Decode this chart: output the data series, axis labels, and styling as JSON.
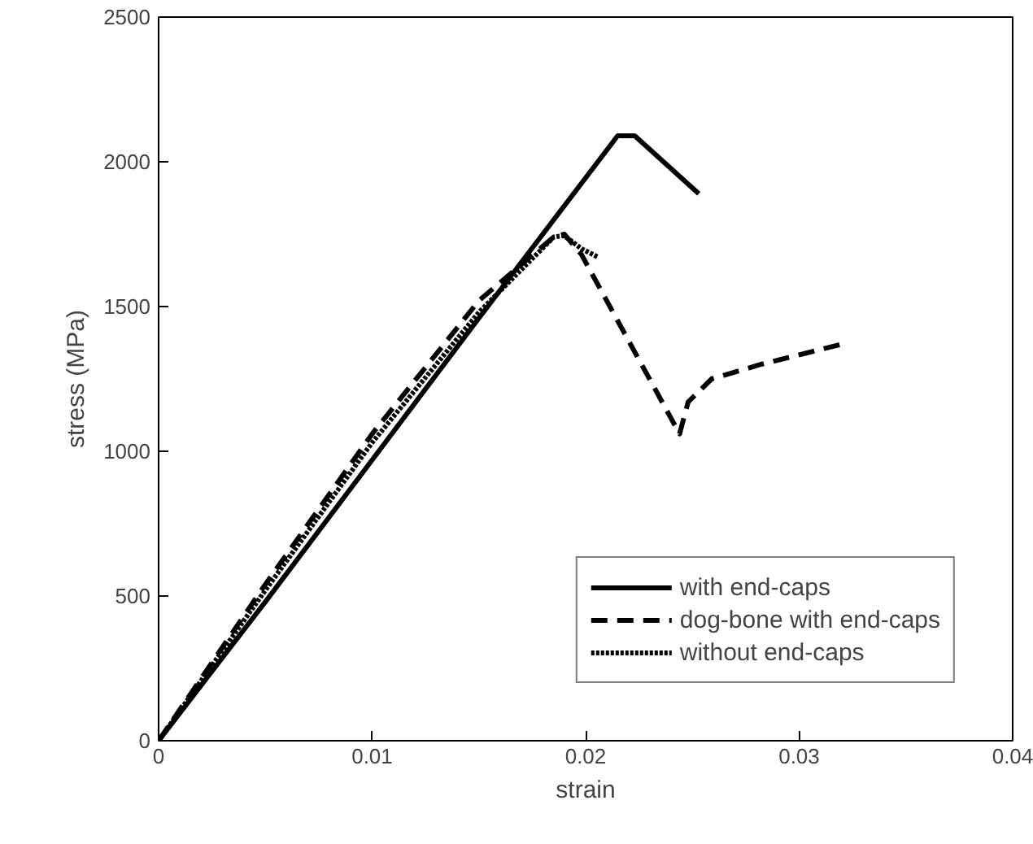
{
  "chart_data": {
    "type": "line",
    "xlabel": "strain",
    "ylabel": "stress (MPa)",
    "xlim": [
      0,
      0.04
    ],
    "xticks": [
      0,
      0.01,
      0.02,
      0.03,
      0.04
    ],
    "ylim": [
      0,
      2500
    ],
    "yticks": [
      0,
      500,
      1000,
      1500,
      2000,
      2500
    ],
    "grid": false,
    "legend": "bottom right",
    "marker": "none",
    "series": [
      {
        "name": "with end-caps",
        "color": "#000000",
        "line_style": "solid",
        "x": [
          0,
          0.005,
          0.01,
          0.015,
          0.0215,
          0.0223,
          0.0253
        ],
        "values": [
          0,
          480,
          970,
          1460,
          2090,
          2090,
          1890
        ]
      },
      {
        "name": "dog-bone with end-caps",
        "color": "#000000",
        "line_style": "dashed",
        "x": [
          0,
          0.005,
          0.01,
          0.015,
          0.0185,
          0.019,
          0.0198,
          0.0244,
          0.0248,
          0.0259,
          0.0282,
          0.032
        ],
        "values": [
          0,
          540,
          1060,
          1520,
          1740,
          1750,
          1680,
          1060,
          1170,
          1250,
          1300,
          1370
        ]
      },
      {
        "name": "without end-caps",
        "color": "#000000",
        "line_style": "dotted",
        "x": [
          0,
          0.005,
          0.01,
          0.015,
          0.0185,
          0.019,
          0.0198,
          0.0206
        ],
        "values": [
          0,
          520,
          1030,
          1480,
          1740,
          1745,
          1700,
          1670
        ]
      }
    ]
  }
}
